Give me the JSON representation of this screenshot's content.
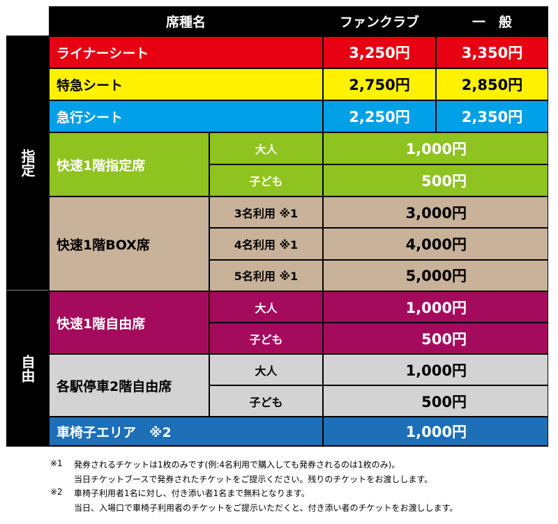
{
  "table": {
    "header": [
      "席種名",
      "ファンクラブ",
      "一　般"
    ],
    "side_labels": [
      "指定",
      "自由"
    ],
    "rows": [
      {
        "seat": "ライナーシート",
        "fanclub": "3,250円",
        "general": "3,350円"
      },
      {
        "seat": "特急シート",
        "fanclub": "2,750円",
        "general": "2,850円"
      },
      {
        "seat": "急行シート",
        "fanclub": "2,250円",
        "general": "2,350円"
      },
      {
        "seat": "快速1階指定席",
        "options": [
          {
            "label": "大人",
            "price": "1,000円"
          },
          {
            "label": "子ども",
            "price": "500円"
          }
        ]
      },
      {
        "seat": "快速1階BOX席",
        "options": [
          {
            "label": "3名利用 ※1",
            "price": "3,000円"
          },
          {
            "label": "4名利用 ※1",
            "price": "4,000円"
          },
          {
            "label": "5名利用 ※1",
            "price": "5,000円"
          }
        ]
      },
      {
        "seat": "快速1階自由席",
        "options": [
          {
            "label": "大人",
            "price": "1,000円"
          },
          {
            "label": "子ども",
            "price": "500円"
          }
        ]
      },
      {
        "seat": "各駅停車2階自由席",
        "options": [
          {
            "label": "大人",
            "price": "1,000円"
          },
          {
            "label": "子ども",
            "price": "500円"
          }
        ]
      },
      {
        "seat": "車椅子エリア　※2",
        "price": "1,000円"
      }
    ]
  },
  "footnotes": [
    {
      "mark": "※1",
      "lines": [
        "発券されるチケットは1枚のみです(例:4名利用で購入しても発券されるのは1枚のみ)。",
        "当日チケットブースで発券されたチケットをご提示ください。残りのチケットをお渡しします。"
      ]
    },
    {
      "mark": "※2",
      "lines": [
        "車椅子利用者1名に対し、付き添い者1名まで無料となります。",
        "当日、入場口で車椅子利用者のチケットをご提示いただくと、付き添い者のチケットをお渡しします。"
      ]
    }
  ]
}
